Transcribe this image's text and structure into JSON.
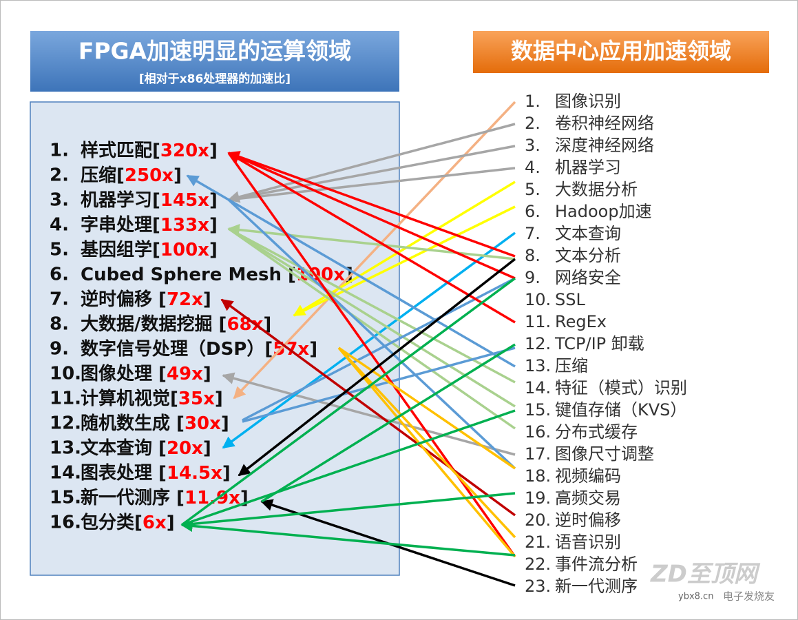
{
  "left_panel": {
    "title": "FPGA加速明显的运算领域",
    "subtitle": "[相对于x86处理器的加速比]",
    "items": [
      {
        "num": "1.",
        "label": "样式匹配[",
        "speedup": "320x",
        "close": "]"
      },
      {
        "num": "2.",
        "label": "压缩[",
        "speedup": "250x",
        "close": "]"
      },
      {
        "num": "3.",
        "label": "机器学习[",
        "speedup": "145x",
        "close": "]"
      },
      {
        "num": "4.",
        "label": "字串处理[",
        "speedup": "133x",
        "close": "]"
      },
      {
        "num": "5.",
        "label": "基因组学[",
        "speedup": "100x",
        "close": "]"
      },
      {
        "num": "6.",
        "label": "Cubed Sphere Mesh [",
        "speedup": "100x",
        "close": "]"
      },
      {
        "num": "7.",
        "label": "逆时偏移 [",
        "speedup": "72x",
        "close": "]"
      },
      {
        "num": "8.",
        "label": "大数据/数据挖掘 [",
        "speedup": "68x",
        "close": "]"
      },
      {
        "num": "9.",
        "label": "数字信号处理（DSP）[",
        "speedup": "57x",
        "close": "]"
      },
      {
        "num": "10.",
        "label": "图像处理 [",
        "speedup": "49x",
        "close": "]"
      },
      {
        "num": "11.",
        "label": "计算机视觉[",
        "speedup": "35x",
        "close": "]"
      },
      {
        "num": "12.",
        "label": "随机数生成 [",
        "speedup": "30x",
        "close": "]"
      },
      {
        "num": "13.",
        "label": "文本查询 [",
        "speedup": "20x",
        "close": "]"
      },
      {
        "num": "14.",
        "label": "图表处理 [",
        "speedup": "14.5x",
        "close": "]"
      },
      {
        "num": "15.",
        "label": "新一代测序 [",
        "speedup": "11.9x",
        "close": "]"
      },
      {
        "num": "16.",
        "label": "包分类[",
        "speedup": "6x",
        "close": "]"
      }
    ]
  },
  "right_panel": {
    "title": "数据中心应用加速领域",
    "items": [
      {
        "num": "1.",
        "label": "图像识别"
      },
      {
        "num": "2.",
        "label": "卷积神经网络"
      },
      {
        "num": "3.",
        "label": "深度神经网络"
      },
      {
        "num": "4.",
        "label": "机器学习"
      },
      {
        "num": "5.",
        "label": "大数据分析"
      },
      {
        "num": "6.",
        "label": "Hadoop加速"
      },
      {
        "num": "7.",
        "label": "文本查询"
      },
      {
        "num": "8.",
        "label": "文本分析"
      },
      {
        "num": "9.",
        "label": "网络安全"
      },
      {
        "num": "10.",
        "label": "SSL"
      },
      {
        "num": "11.",
        "label": "RegEx"
      },
      {
        "num": "12.",
        "label": "TCP/IP 卸载"
      },
      {
        "num": "13.",
        "label": "压缩"
      },
      {
        "num": "14.",
        "label": "特征（模式）识别"
      },
      {
        "num": "15.",
        "label": "键值存储（KVS）"
      },
      {
        "num": "16.",
        "label": "分布式缓存"
      },
      {
        "num": "17.",
        "label": "图像尺寸调整"
      },
      {
        "num": "18.",
        "label": "视频编码"
      },
      {
        "num": "19.",
        "label": "高频交易"
      },
      {
        "num": "20.",
        "label": "逆时偏移"
      },
      {
        "num": "21.",
        "label": "语音识别"
      },
      {
        "num": "22.",
        "label": "事件流分析"
      },
      {
        "num": "23.",
        "label": "新一代测序"
      }
    ]
  },
  "watermark": [
    "ZD至顶网",
    "ybx8.cn",
    "电子发烧友"
  ]
}
